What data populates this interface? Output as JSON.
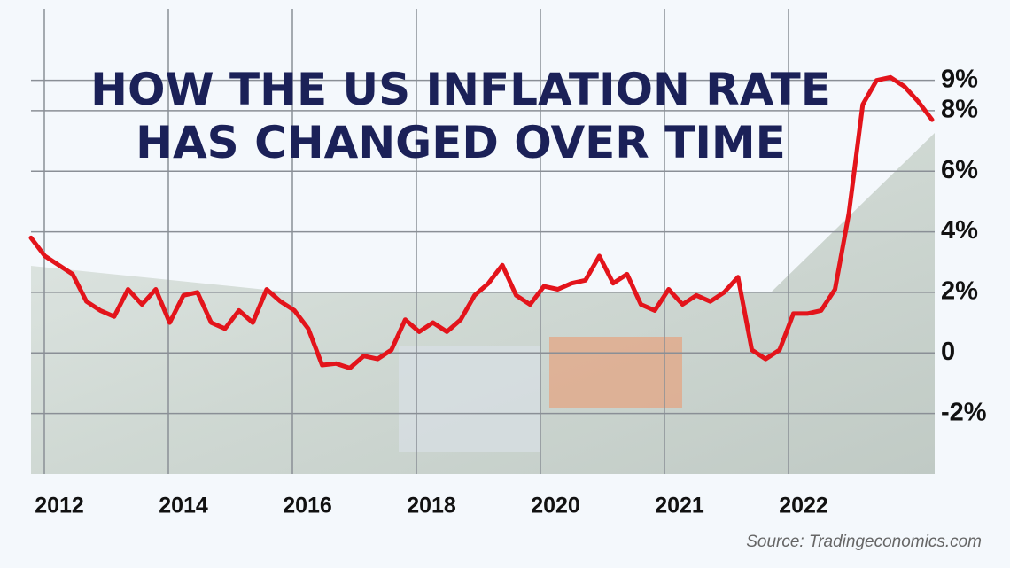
{
  "chart_data": {
    "type": "line",
    "title": "HOW THE US INFLATION RATE",
    "subtitle": "HAS CHANGED OVER TIME",
    "source": "Source: Tradingeconomics.com",
    "x_labels": [
      "2012",
      "2014",
      "2016",
      "2018",
      "2020",
      "2021",
      "2022"
    ],
    "ylim": [
      -4,
      10.6
    ],
    "yticks": [
      {
        "value": 9,
        "label": "9%"
      },
      {
        "value": 8,
        "label": "8%"
      },
      {
        "value": 6,
        "label": "6%"
      },
      {
        "value": 4,
        "label": "4%"
      },
      {
        "value": 2,
        "label": "2%"
      },
      0,
      {
        "value": -2,
        "label": "-2%"
      }
    ],
    "grid": true,
    "series": [
      {
        "name": "US inflation rate",
        "color": "#e3141b",
        "values": [
          3.8,
          3.2,
          2.9,
          2.6,
          1.7,
          1.4,
          1.2,
          2.1,
          1.6,
          2.1,
          1.0,
          1.9,
          2.0,
          1.0,
          0.8,
          1.4,
          1.0,
          2.1,
          1.7,
          1.4,
          0.8,
          -0.4,
          -0.35,
          -0.5,
          -0.1,
          -0.2,
          0.1,
          1.1,
          0.7,
          1.0,
          0.7,
          1.1,
          1.9,
          2.3,
          2.9,
          1.9,
          1.6,
          2.2,
          2.1,
          2.3,
          2.4,
          3.2,
          2.3,
          2.6,
          1.6,
          1.4,
          2.1,
          1.6,
          1.9,
          1.7,
          2.0,
          2.5,
          0.1,
          -0.2,
          0.1,
          1.3,
          1.3,
          1.4,
          2.1,
          4.6,
          8.2,
          9.0,
          9.1,
          8.8,
          8.3,
          7.7
        ]
      }
    ]
  }
}
